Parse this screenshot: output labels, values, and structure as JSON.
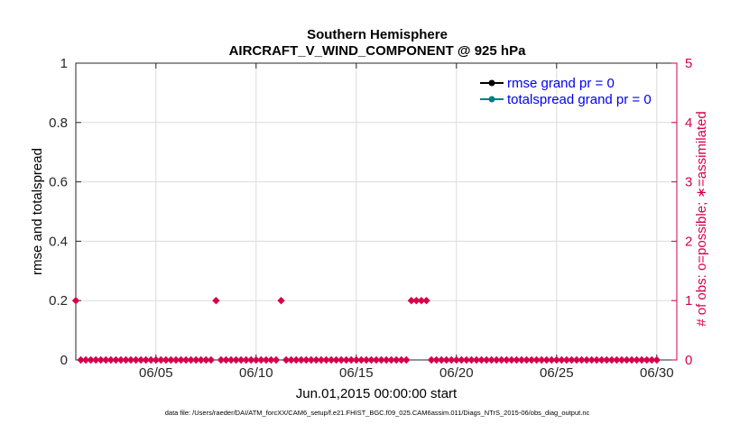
{
  "chart_data": {
    "type": "line",
    "title": "Southern Hemisphere",
    "subtitle": "AIRCRAFT_V_WIND_COMPONENT @ 925 hPa",
    "xlabel": "Jun.01,2015 00:00:00 start",
    "ylabel": "rmse and totalspread",
    "y2label": "# of obs: o=possible; ∗=assimilated",
    "xlim": [
      1,
      31
    ],
    "ylim": [
      0,
      1
    ],
    "y2lim": [
      0,
      5
    ],
    "x_ticks": [
      5,
      10,
      15,
      20,
      25,
      30
    ],
    "x_tick_labels": [
      "06/05",
      "06/10",
      "06/15",
      "06/20",
      "06/25",
      "06/30"
    ],
    "y_ticks": [
      "0",
      "0.2",
      "0.4",
      "0.6",
      "0.8",
      "1"
    ],
    "y2_ticks": [
      "0",
      "1",
      "2",
      "3",
      "4",
      "5"
    ],
    "grid": true,
    "legend_position": "top-right",
    "series": [
      {
        "name": "rmse grand pr = 0",
        "color": "#000000",
        "values": []
      },
      {
        "name": "totalspread grand pr = 0",
        "color": "#008080",
        "values": []
      }
    ],
    "obs_count_axis": "right",
    "obs_count_color": "#d6004a",
    "obs_count_x_step": 0.25,
    "obs_count_x_start": 1,
    "obs_count_values": [
      1,
      0,
      0,
      0,
      0,
      0,
      0,
      0,
      0,
      0,
      0,
      0,
      0,
      0,
      0,
      0,
      0,
      0,
      0,
      0,
      0,
      0,
      0,
      0,
      0,
      0,
      0,
      0,
      1,
      0,
      0,
      0,
      0,
      0,
      0,
      0,
      0,
      0,
      0,
      0,
      0,
      1,
      0,
      0,
      0,
      0,
      0,
      0,
      0,
      0,
      0,
      0,
      0,
      0,
      0,
      0,
      0,
      0,
      0,
      0,
      0,
      0,
      0,
      0,
      0,
      0,
      0,
      1,
      1,
      1,
      1,
      0,
      0,
      0,
      0,
      0,
      0,
      0,
      0,
      0,
      0,
      0,
      0,
      0,
      0,
      0,
      0,
      0,
      0,
      0,
      0,
      0,
      0,
      0,
      0,
      0,
      0,
      0,
      0,
      0,
      0,
      0,
      0,
      0,
      0,
      0,
      0,
      0,
      0,
      0,
      0,
      0,
      0,
      0,
      0,
      0,
      0
    ],
    "footer": "data file: /Users/raeder/DAI/ATM_forcXX/CAM6_setup/f.e21.FHIST_BGC.f09_025.CAM6assim.011/Diags_NTrS_2015-06/obs_diag_output.nc"
  }
}
